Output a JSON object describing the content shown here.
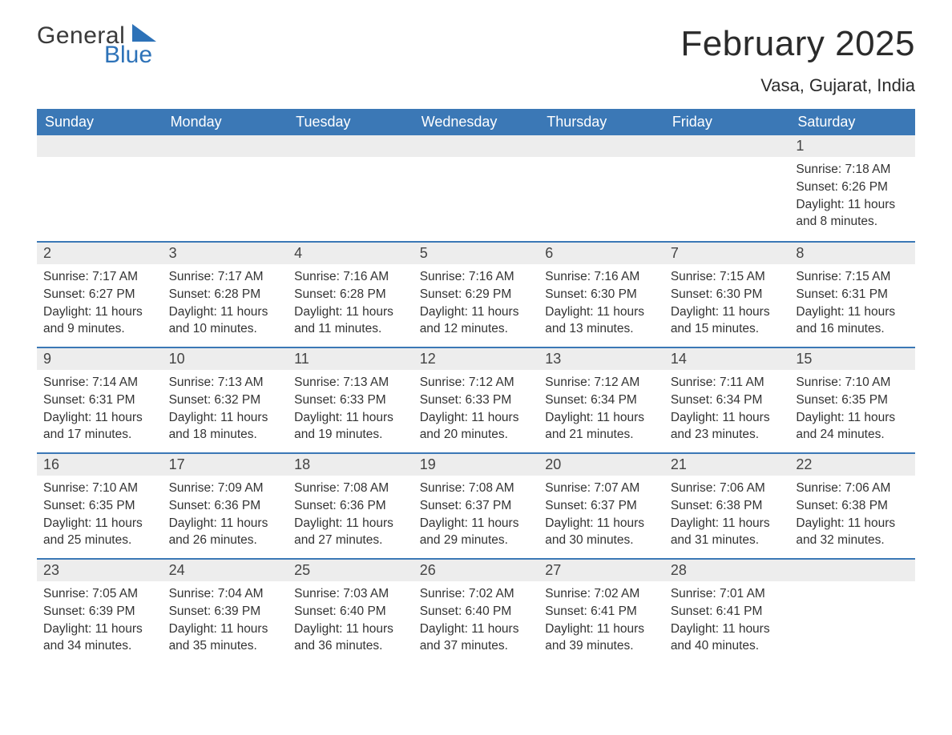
{
  "brand": {
    "line1": "General",
    "line2": "Blue",
    "text_color": "#3a3a3a",
    "accent_color": "#2d72b8"
  },
  "title": {
    "month": "February 2025",
    "location": "Vasa, Gujarat, India"
  },
  "palette": {
    "header_bg": "#3b78b6",
    "header_text": "#ffffff",
    "daynum_bg": "#ededed",
    "row_border": "#3b78b6",
    "body_text": "#333333",
    "page_bg": "#ffffff"
  },
  "typography": {
    "month_title_pt": 44,
    "location_pt": 22,
    "header_pt": 18,
    "daynum_pt": 18,
    "body_pt": 15.5,
    "logo_pt": 30,
    "font_family": "Segoe UI"
  },
  "calendar": {
    "columns": [
      "Sunday",
      "Monday",
      "Tuesday",
      "Wednesday",
      "Thursday",
      "Friday",
      "Saturday"
    ],
    "weeks": [
      [
        null,
        null,
        null,
        null,
        null,
        null,
        {
          "n": "1",
          "sunrise": "Sunrise: 7:18 AM",
          "sunset": "Sunset: 6:26 PM",
          "daylight": "Daylight: 11 hours and 8 minutes."
        }
      ],
      [
        {
          "n": "2",
          "sunrise": "Sunrise: 7:17 AM",
          "sunset": "Sunset: 6:27 PM",
          "daylight": "Daylight: 11 hours and 9 minutes."
        },
        {
          "n": "3",
          "sunrise": "Sunrise: 7:17 AM",
          "sunset": "Sunset: 6:28 PM",
          "daylight": "Daylight: 11 hours and 10 minutes."
        },
        {
          "n": "4",
          "sunrise": "Sunrise: 7:16 AM",
          "sunset": "Sunset: 6:28 PM",
          "daylight": "Daylight: 11 hours and 11 minutes."
        },
        {
          "n": "5",
          "sunrise": "Sunrise: 7:16 AM",
          "sunset": "Sunset: 6:29 PM",
          "daylight": "Daylight: 11 hours and 12 minutes."
        },
        {
          "n": "6",
          "sunrise": "Sunrise: 7:16 AM",
          "sunset": "Sunset: 6:30 PM",
          "daylight": "Daylight: 11 hours and 13 minutes."
        },
        {
          "n": "7",
          "sunrise": "Sunrise: 7:15 AM",
          "sunset": "Sunset: 6:30 PM",
          "daylight": "Daylight: 11 hours and 15 minutes."
        },
        {
          "n": "8",
          "sunrise": "Sunrise: 7:15 AM",
          "sunset": "Sunset: 6:31 PM",
          "daylight": "Daylight: 11 hours and 16 minutes."
        }
      ],
      [
        {
          "n": "9",
          "sunrise": "Sunrise: 7:14 AM",
          "sunset": "Sunset: 6:31 PM",
          "daylight": "Daylight: 11 hours and 17 minutes."
        },
        {
          "n": "10",
          "sunrise": "Sunrise: 7:13 AM",
          "sunset": "Sunset: 6:32 PM",
          "daylight": "Daylight: 11 hours and 18 minutes."
        },
        {
          "n": "11",
          "sunrise": "Sunrise: 7:13 AM",
          "sunset": "Sunset: 6:33 PM",
          "daylight": "Daylight: 11 hours and 19 minutes."
        },
        {
          "n": "12",
          "sunrise": "Sunrise: 7:12 AM",
          "sunset": "Sunset: 6:33 PM",
          "daylight": "Daylight: 11 hours and 20 minutes."
        },
        {
          "n": "13",
          "sunrise": "Sunrise: 7:12 AM",
          "sunset": "Sunset: 6:34 PM",
          "daylight": "Daylight: 11 hours and 21 minutes."
        },
        {
          "n": "14",
          "sunrise": "Sunrise: 7:11 AM",
          "sunset": "Sunset: 6:34 PM",
          "daylight": "Daylight: 11 hours and 23 minutes."
        },
        {
          "n": "15",
          "sunrise": "Sunrise: 7:10 AM",
          "sunset": "Sunset: 6:35 PM",
          "daylight": "Daylight: 11 hours and 24 minutes."
        }
      ],
      [
        {
          "n": "16",
          "sunrise": "Sunrise: 7:10 AM",
          "sunset": "Sunset: 6:35 PM",
          "daylight": "Daylight: 11 hours and 25 minutes."
        },
        {
          "n": "17",
          "sunrise": "Sunrise: 7:09 AM",
          "sunset": "Sunset: 6:36 PM",
          "daylight": "Daylight: 11 hours and 26 minutes."
        },
        {
          "n": "18",
          "sunrise": "Sunrise: 7:08 AM",
          "sunset": "Sunset: 6:36 PM",
          "daylight": "Daylight: 11 hours and 27 minutes."
        },
        {
          "n": "19",
          "sunrise": "Sunrise: 7:08 AM",
          "sunset": "Sunset: 6:37 PM",
          "daylight": "Daylight: 11 hours and 29 minutes."
        },
        {
          "n": "20",
          "sunrise": "Sunrise: 7:07 AM",
          "sunset": "Sunset: 6:37 PM",
          "daylight": "Daylight: 11 hours and 30 minutes."
        },
        {
          "n": "21",
          "sunrise": "Sunrise: 7:06 AM",
          "sunset": "Sunset: 6:38 PM",
          "daylight": "Daylight: 11 hours and 31 minutes."
        },
        {
          "n": "22",
          "sunrise": "Sunrise: 7:06 AM",
          "sunset": "Sunset: 6:38 PM",
          "daylight": "Daylight: 11 hours and 32 minutes."
        }
      ],
      [
        {
          "n": "23",
          "sunrise": "Sunrise: 7:05 AM",
          "sunset": "Sunset: 6:39 PM",
          "daylight": "Daylight: 11 hours and 34 minutes."
        },
        {
          "n": "24",
          "sunrise": "Sunrise: 7:04 AM",
          "sunset": "Sunset: 6:39 PM",
          "daylight": "Daylight: 11 hours and 35 minutes."
        },
        {
          "n": "25",
          "sunrise": "Sunrise: 7:03 AM",
          "sunset": "Sunset: 6:40 PM",
          "daylight": "Daylight: 11 hours and 36 minutes."
        },
        {
          "n": "26",
          "sunrise": "Sunrise: 7:02 AM",
          "sunset": "Sunset: 6:40 PM",
          "daylight": "Daylight: 11 hours and 37 minutes."
        },
        {
          "n": "27",
          "sunrise": "Sunrise: 7:02 AM",
          "sunset": "Sunset: 6:41 PM",
          "daylight": "Daylight: 11 hours and 39 minutes."
        },
        {
          "n": "28",
          "sunrise": "Sunrise: 7:01 AM",
          "sunset": "Sunset: 6:41 PM",
          "daylight": "Daylight: 11 hours and 40 minutes."
        },
        null
      ]
    ]
  }
}
